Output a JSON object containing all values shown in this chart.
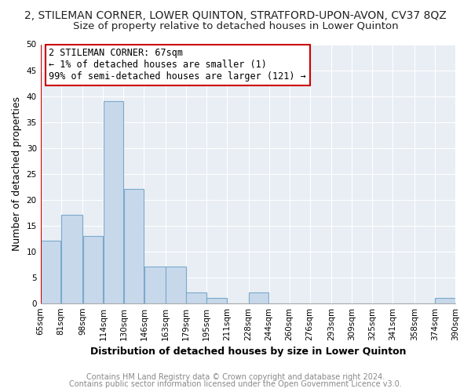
{
  "title": "2, STILEMAN CORNER, LOWER QUINTON, STRATFORD-UPON-AVON, CV37 8QZ",
  "subtitle": "Size of property relative to detached houses in Lower Quinton",
  "xlabel": "Distribution of detached houses by size in Lower Quinton",
  "ylabel": "Number of detached properties",
  "bar_color": "#c8d8eb",
  "bar_edge_color": "#7aaacb",
  "annotation_box_color": "#cc0000",
  "annotation_lines": [
    "2 STILEMAN CORNER: 67sqm",
    "← 1% of detached houses are smaller (1)",
    "99% of semi-detached houses are larger (121) →"
  ],
  "bins": [
    65,
    81,
    98,
    114,
    130,
    146,
    163,
    179,
    195,
    211,
    228,
    244,
    260,
    276,
    293,
    309,
    325,
    341,
    358,
    374,
    390
  ],
  "counts": [
    12,
    17,
    13,
    39,
    22,
    7,
    7,
    2,
    1,
    0,
    2,
    0,
    0,
    0,
    0,
    0,
    0,
    0,
    0,
    1
  ],
  "tick_labels": [
    "65sqm",
    "81sqm",
    "98sqm",
    "114sqm",
    "130sqm",
    "146sqm",
    "163sqm",
    "179sqm",
    "195sqm",
    "211sqm",
    "228sqm",
    "244sqm",
    "260sqm",
    "276sqm",
    "293sqm",
    "309sqm",
    "325sqm",
    "341sqm",
    "358sqm",
    "374sqm",
    "390sqm"
  ],
  "ylim": [
    0,
    50
  ],
  "yticks": [
    0,
    5,
    10,
    15,
    20,
    25,
    30,
    35,
    40,
    45,
    50
  ],
  "footer1": "Contains HM Land Registry data © Crown copyright and database right 2024.",
  "footer2": "Contains public sector information licensed under the Open Government Licence v3.0.",
  "background_color": "#ffffff",
  "plot_bg_color": "#e8eef4",
  "grid_color": "#ffffff",
  "title_fontsize": 10,
  "subtitle_fontsize": 9.5,
  "axis_label_fontsize": 9,
  "tick_fontsize": 7.5,
  "annotation_fontsize": 8.5,
  "footer_fontsize": 7
}
